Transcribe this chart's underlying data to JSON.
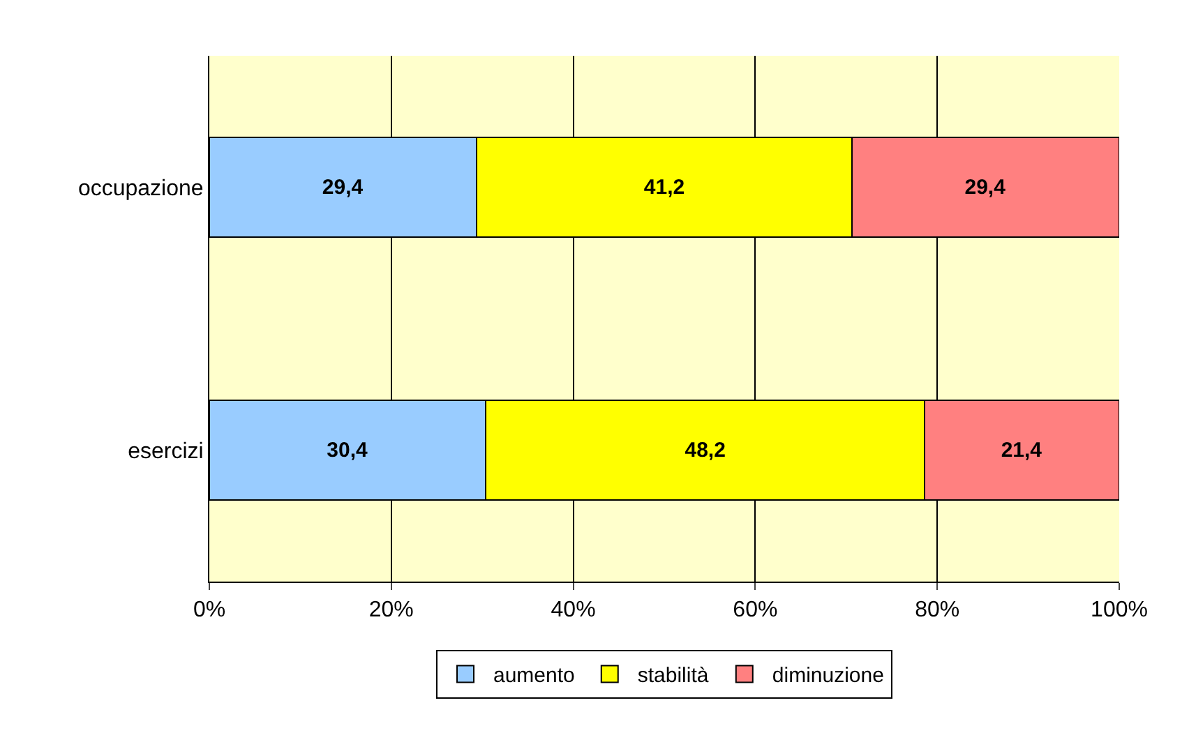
{
  "chart_data": {
    "type": "bar",
    "orientation": "horizontal",
    "stacked": true,
    "categories": [
      "occupazione",
      "esercizi"
    ],
    "series": [
      {
        "name": "aumento",
        "color": "#99ccff",
        "values": [
          29.4,
          30.4
        ],
        "value_labels": [
          "29,4",
          "30,4"
        ]
      },
      {
        "name": "stabilità",
        "color": "#ffff00",
        "values": [
          41.2,
          48.2
        ],
        "value_labels": [
          "41,2",
          "48,2"
        ]
      },
      {
        "name": "diminuzione",
        "color": "#ff8080",
        "values": [
          29.4,
          21.4
        ],
        "value_labels": [
          "29,4",
          "21,4"
        ]
      }
    ],
    "xlim": [
      0,
      100
    ],
    "xticks": [
      {
        "value": 0,
        "label": "0%"
      },
      {
        "value": 20,
        "label": "20%"
      },
      {
        "value": 40,
        "label": "40%"
      },
      {
        "value": 60,
        "label": "60%"
      },
      {
        "value": 80,
        "label": "80%"
      },
      {
        "value": 100,
        "label": "100%"
      }
    ],
    "grid": "x",
    "legend": "bottom"
  }
}
